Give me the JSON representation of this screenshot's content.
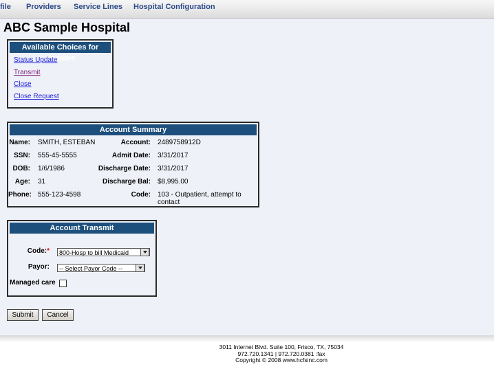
{
  "nav": [
    "file",
    "Providers",
    "Service Lines",
    "Hospital Configuration"
  ],
  "header": {
    "title": "ABC Sample Hospital"
  },
  "choices": {
    "title": "Available Choices for Updates",
    "links": [
      "Status Update",
      "Transmit",
      "Close",
      "Close Request"
    ]
  },
  "summary": {
    "title": "Account Summary",
    "rows": [
      [
        {
          "label": "Name:",
          "value": "SMITH, ESTEBAN"
        },
        {
          "label": "Account:",
          "value": "2489758912D"
        }
      ],
      [
        {
          "label": "SSN:",
          "value": "555-45-5555"
        },
        {
          "label": "Admit Date:",
          "value": "3/31/2017"
        }
      ],
      [
        {
          "label": "DOB:",
          "value": "1/6/1986"
        },
        {
          "label": "Discharge Date:",
          "value": "3/31/2017"
        }
      ],
      [
        {
          "label": "Age:",
          "value": "31"
        },
        {
          "label": "Discharge Bal:",
          "value": "$8,995.00"
        }
      ],
      [
        {
          "label": "Phone:",
          "value": "555-123-4598"
        },
        {
          "label": "Code:",
          "value": "103 - Outpatient, attempt to contact"
        }
      ]
    ]
  },
  "transmit": {
    "title": "Account Transmit",
    "code": {
      "label": "Code:",
      "required_mark": "*",
      "value": "800-Hosp to bill Medicaid"
    },
    "payor": {
      "label": "Payor:",
      "value": "-- Select Payor Code --"
    },
    "managed_care": {
      "label": "Managed care"
    }
  },
  "buttons": [
    "Submit",
    "Cancel"
  ],
  "footer": [
    "3011 Internet Blvd. Suite 100, Frisco, TX, 75034",
    "972.720.1341 | 972.720.0381 :fax",
    "Copyright © 2008 www.hcfsinc.com"
  ]
}
